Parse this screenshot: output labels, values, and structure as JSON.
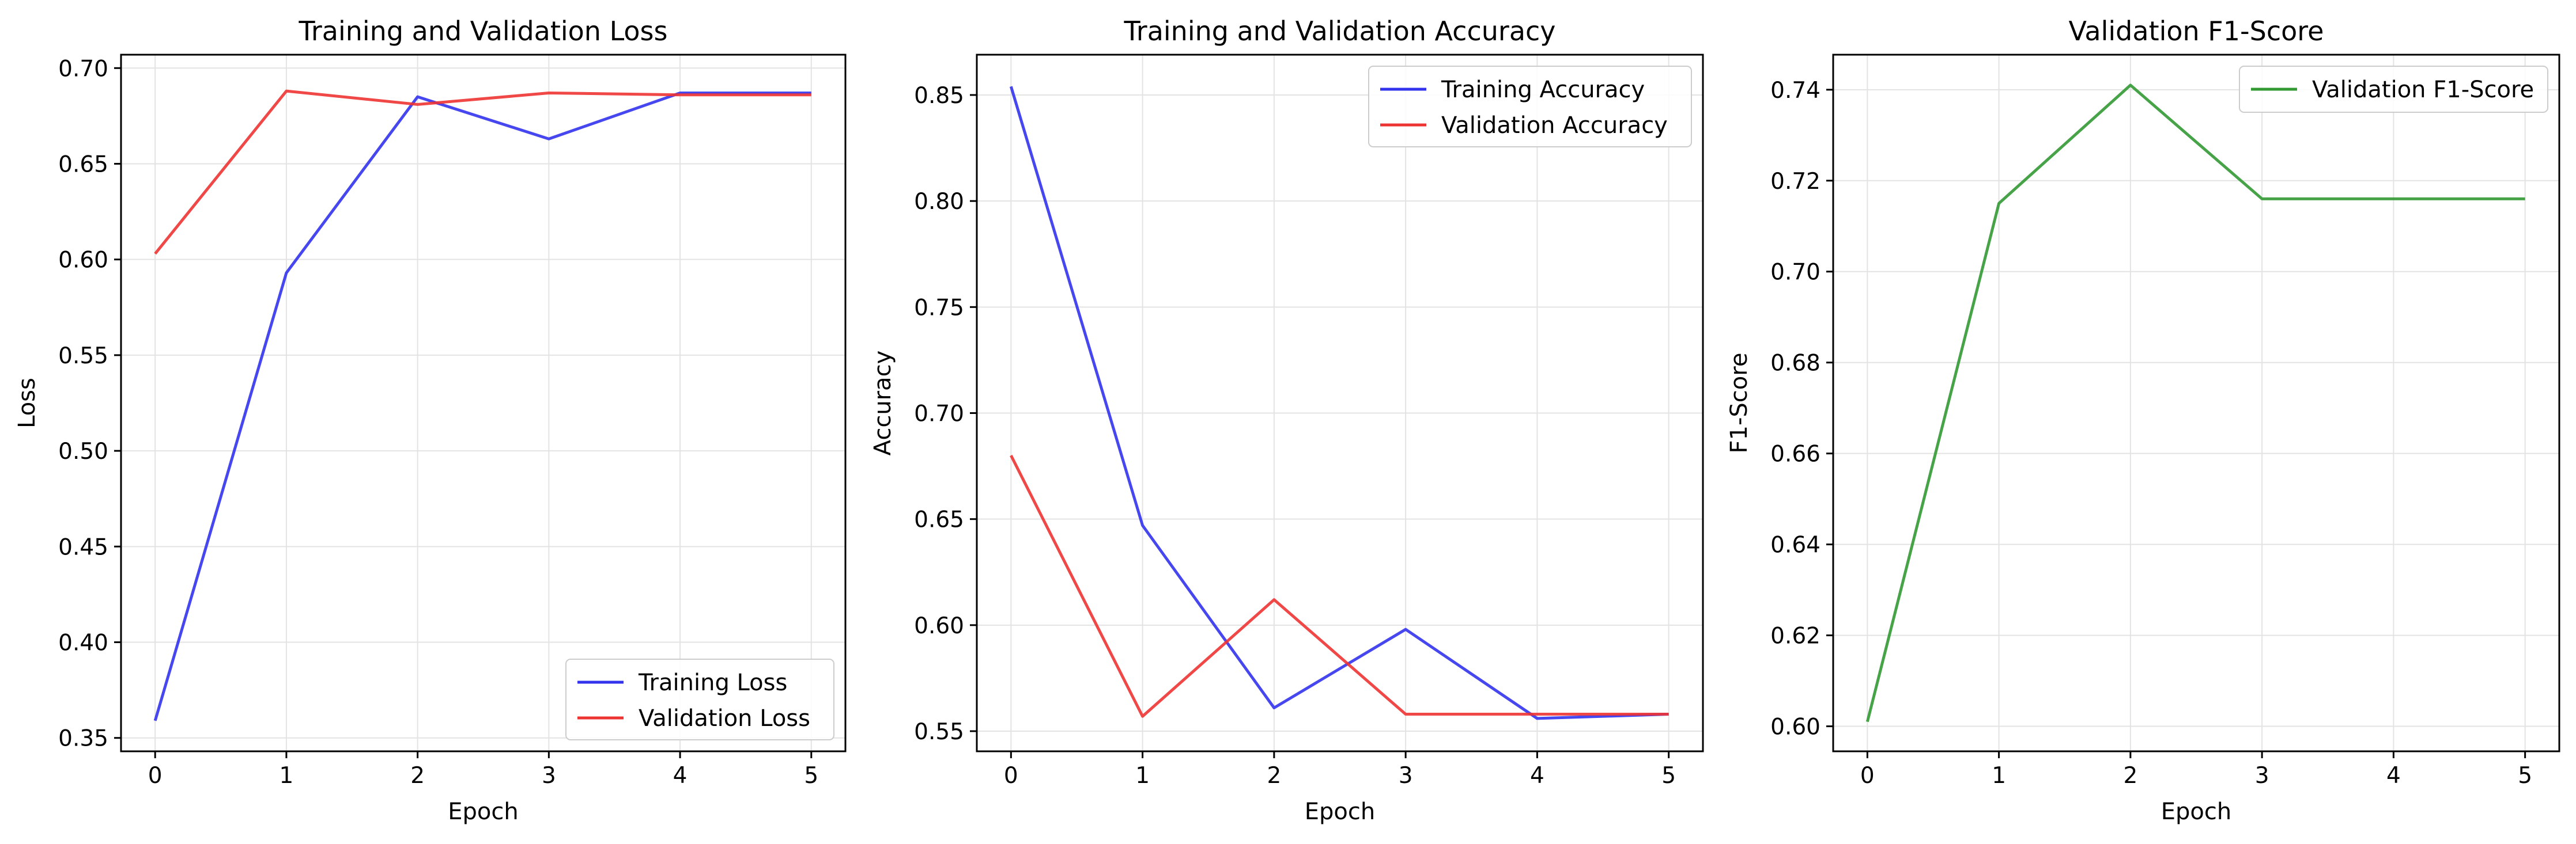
{
  "chart_data": [
    {
      "type": "line",
      "title": "Training and Validation Loss",
      "xlabel": "Epoch",
      "ylabel": "Loss",
      "x": [
        0,
        1,
        2,
        3,
        4,
        5
      ],
      "xlim": [
        -0.26,
        5.26
      ],
      "ylim": [
        0.343,
        0.707
      ],
      "xticks": [
        0,
        1,
        2,
        3,
        4,
        5
      ],
      "yticks": [
        0.35,
        0.4,
        0.45,
        0.5,
        0.55,
        0.6,
        0.65,
        0.7
      ],
      "ytick_labels": [
        "0.35",
        "0.40",
        "0.45",
        "0.50",
        "0.55",
        "0.60",
        "0.65",
        "0.70"
      ],
      "grid": true,
      "legend_position": "lower-right",
      "series": [
        {
          "name": "Training Loss",
          "color": "#3333ee",
          "values": [
            0.359,
            0.593,
            0.685,
            0.663,
            0.687,
            0.687
          ]
        },
        {
          "name": "Validation Loss",
          "color": "#ee3333",
          "values": [
            0.603,
            0.688,
            0.681,
            0.687,
            0.686,
            0.686
          ]
        }
      ]
    },
    {
      "type": "line",
      "title": "Training and Validation Accuracy",
      "xlabel": "Epoch",
      "ylabel": "Accuracy",
      "x": [
        0,
        1,
        2,
        3,
        4,
        5
      ],
      "xlim": [
        -0.26,
        5.26
      ],
      "ylim": [
        0.5405,
        0.869
      ],
      "xticks": [
        0,
        1,
        2,
        3,
        4,
        5
      ],
      "yticks": [
        0.55,
        0.6,
        0.65,
        0.7,
        0.75,
        0.8,
        0.85
      ],
      "ytick_labels": [
        "0.55",
        "0.60",
        "0.65",
        "0.70",
        "0.75",
        "0.80",
        "0.85"
      ],
      "grid": true,
      "legend_position": "top-right",
      "series": [
        {
          "name": "Training Accuracy",
          "color": "#3333ee",
          "values": [
            0.854,
            0.647,
            0.561,
            0.598,
            0.556,
            0.558
          ]
        },
        {
          "name": "Validation Accuracy",
          "color": "#ee3333",
          "values": [
            0.68,
            0.557,
            0.612,
            0.558,
            0.558,
            0.558
          ]
        }
      ]
    },
    {
      "type": "line",
      "title": "Validation F1-Score",
      "xlabel": "Epoch",
      "ylabel": "F1-Score",
      "x": [
        0,
        1,
        2,
        3,
        4,
        5
      ],
      "xlim": [
        -0.26,
        5.26
      ],
      "ylim": [
        0.5945,
        0.7477
      ],
      "xticks": [
        0,
        1,
        2,
        3,
        4,
        5
      ],
      "yticks": [
        0.6,
        0.62,
        0.64,
        0.66,
        0.68,
        0.7,
        0.72,
        0.74
      ],
      "ytick_labels": [
        "0.60",
        "0.62",
        "0.64",
        "0.66",
        "0.68",
        "0.70",
        "0.72",
        "0.74"
      ],
      "grid": true,
      "legend_position": "top-right",
      "series": [
        {
          "name": "Validation F1-Score",
          "color": "#339933",
          "values": [
            0.601,
            0.715,
            0.741,
            0.716,
            0.716,
            0.716
          ]
        }
      ]
    }
  ]
}
